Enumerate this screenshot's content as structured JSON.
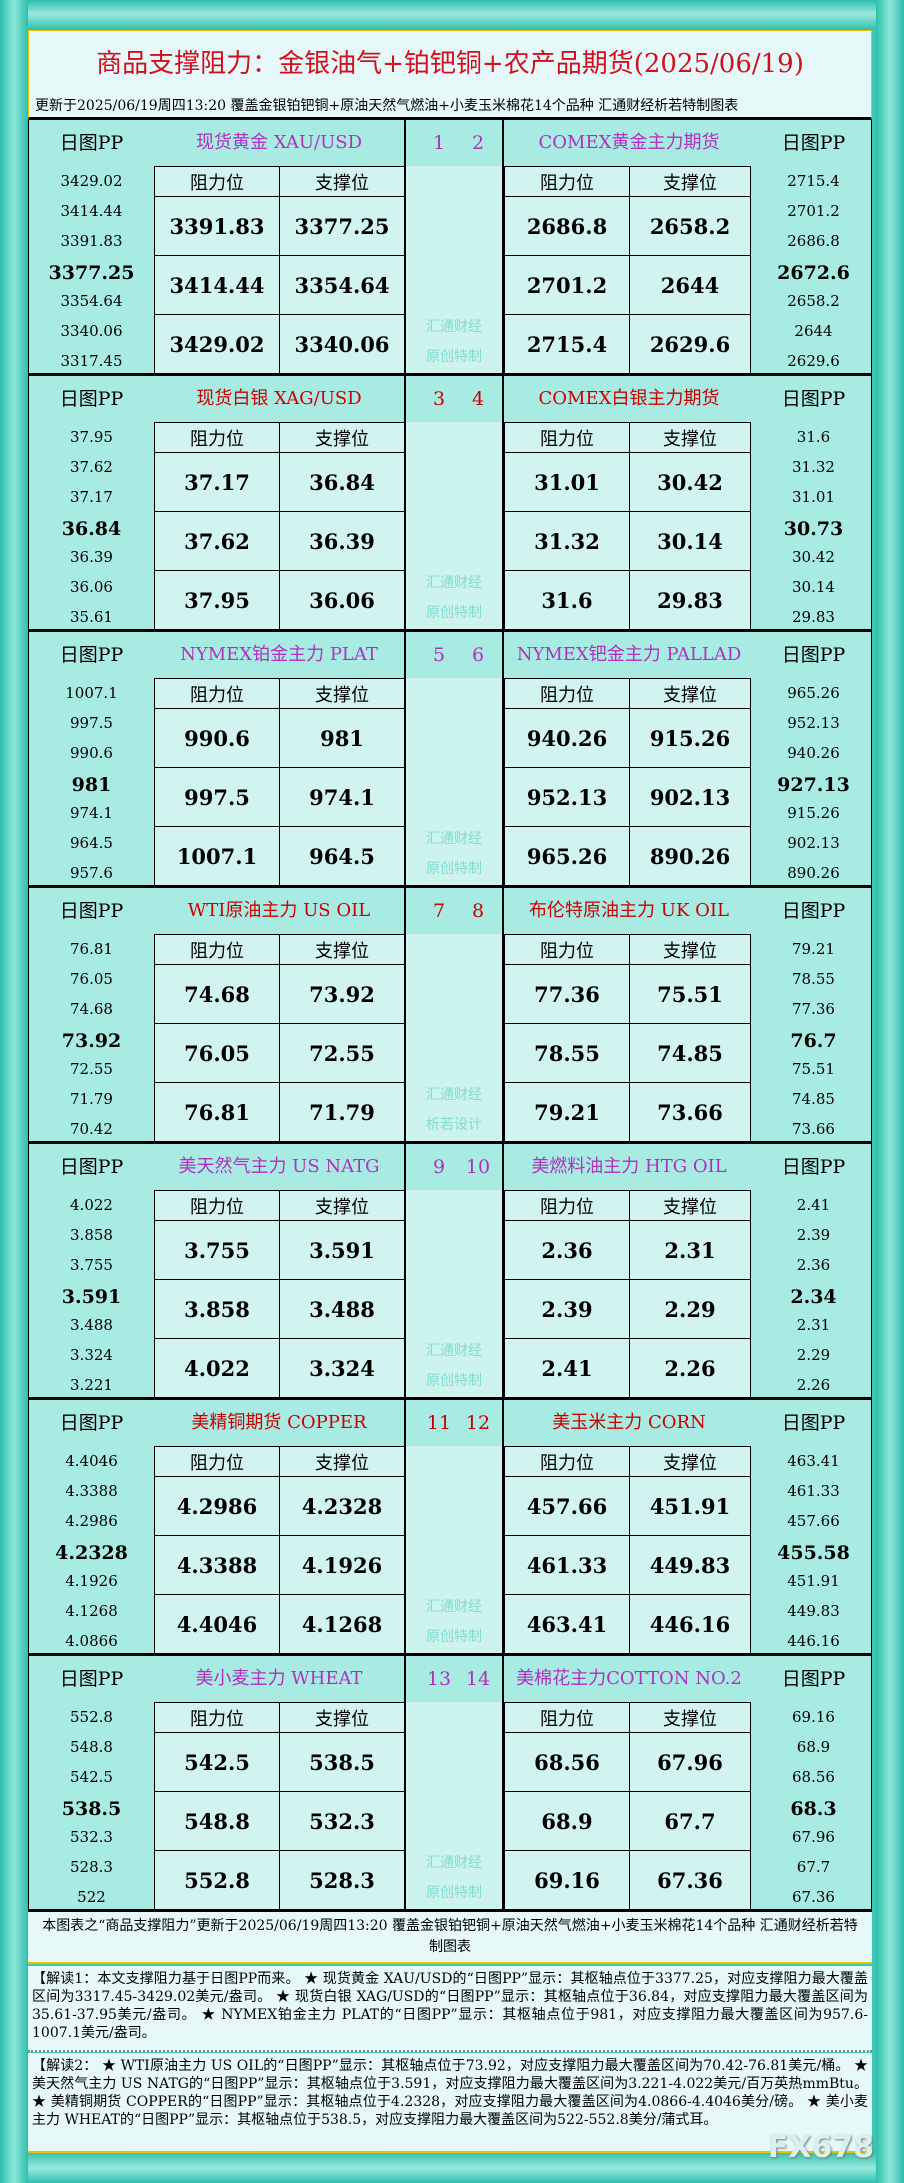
{
  "header": {
    "title": "商品支撑阻力：金银油气+铂钯铜+农产品期货(2025/06/19)",
    "subtitle": "更新于2025/06/19周四13:20 覆盖金银铂钯铜+原油天然气燃油+小麦玉米棉花14个品种 汇通财经析若特制图表"
  },
  "labels": {
    "pp": "日图PP",
    "resist": "阻力位",
    "support": "支撑位"
  },
  "colors": {
    "purple": "#b030c0",
    "red": "#cc0000"
  },
  "blocks": [
    {
      "color": "purple",
      "left": {
        "num": "1",
        "name": "现货黄金 XAU/USD",
        "pp": [
          "3429.02",
          "3414.44",
          "3391.83",
          "3377.25",
          "3354.64",
          "3340.06",
          "3317.45"
        ],
        "rows": [
          [
            "3391.83",
            "3377.25"
          ],
          [
            "3414.44",
            "3354.64"
          ],
          [
            "3429.02",
            "3340.06"
          ]
        ]
      },
      "right": {
        "num": "2",
        "name": "COMEX黄金主力期货",
        "pp": [
          "2715.4",
          "2701.2",
          "2686.8",
          "2672.6",
          "2658.2",
          "2644",
          "2629.6"
        ],
        "rows": [
          [
            "2686.8",
            "2658.2"
          ],
          [
            "2701.2",
            "2644"
          ],
          [
            "2715.4",
            "2629.6"
          ]
        ]
      },
      "wm": [
        "汇通财经",
        "原创特制"
      ]
    },
    {
      "color": "red",
      "left": {
        "num": "3",
        "name": "现货白银 XAG/USD",
        "pp": [
          "37.95",
          "37.62",
          "37.17",
          "36.84",
          "36.39",
          "36.06",
          "35.61"
        ],
        "rows": [
          [
            "37.17",
            "36.84"
          ],
          [
            "37.62",
            "36.39"
          ],
          [
            "37.95",
            "36.06"
          ]
        ]
      },
      "right": {
        "num": "4",
        "name": "COMEX白银主力期货",
        "pp": [
          "31.6",
          "31.32",
          "31.01",
          "30.73",
          "30.42",
          "30.14",
          "29.83"
        ],
        "rows": [
          [
            "31.01",
            "30.42"
          ],
          [
            "31.32",
            "30.14"
          ],
          [
            "31.6",
            "29.83"
          ]
        ]
      },
      "wm": [
        "汇通财经",
        "原创特制"
      ]
    },
    {
      "color": "purple",
      "left": {
        "num": "5",
        "name": "NYMEX铂金主力 PLAT",
        "pp": [
          "1007.1",
          "997.5",
          "990.6",
          "981",
          "974.1",
          "964.5",
          "957.6"
        ],
        "rows": [
          [
            "990.6",
            "981"
          ],
          [
            "997.5",
            "974.1"
          ],
          [
            "1007.1",
            "964.5"
          ]
        ]
      },
      "right": {
        "num": "6",
        "name": "NYMEX钯金主力 PALLAD",
        "pp": [
          "965.26",
          "952.13",
          "940.26",
          "927.13",
          "915.26",
          "902.13",
          "890.26"
        ],
        "rows": [
          [
            "940.26",
            "915.26"
          ],
          [
            "952.13",
            "902.13"
          ],
          [
            "965.26",
            "890.26"
          ]
        ]
      },
      "wm": [
        "汇通财经",
        "原创特制"
      ]
    },
    {
      "color": "red",
      "left": {
        "num": "7",
        "name": "WTI原油主力 US OIL",
        "pp": [
          "76.81",
          "76.05",
          "74.68",
          "73.92",
          "72.55",
          "71.79",
          "70.42"
        ],
        "rows": [
          [
            "74.68",
            "73.92"
          ],
          [
            "76.05",
            "72.55"
          ],
          [
            "76.81",
            "71.79"
          ]
        ]
      },
      "right": {
        "num": "8",
        "name": "布伦特原油主力 UK OIL",
        "pp": [
          "79.21",
          "78.55",
          "77.36",
          "76.7",
          "75.51",
          "74.85",
          "73.66"
        ],
        "rows": [
          [
            "77.36",
            "75.51"
          ],
          [
            "78.55",
            "74.85"
          ],
          [
            "79.21",
            "73.66"
          ]
        ]
      },
      "wm": [
        "汇通财经",
        "析若设计"
      ]
    },
    {
      "color": "purple",
      "left": {
        "num": "9",
        "name": "美天然气主力 US NATG",
        "pp": [
          "4.022",
          "3.858",
          "3.755",
          "3.591",
          "3.488",
          "3.324",
          "3.221"
        ],
        "rows": [
          [
            "3.755",
            "3.591"
          ],
          [
            "3.858",
            "3.488"
          ],
          [
            "4.022",
            "3.324"
          ]
        ]
      },
      "right": {
        "num": "10",
        "name": "美燃料油主力 HTG OIL",
        "pp": [
          "2.41",
          "2.39",
          "2.36",
          "2.34",
          "2.31",
          "2.29",
          "2.26"
        ],
        "rows": [
          [
            "2.36",
            "2.31"
          ],
          [
            "2.39",
            "2.29"
          ],
          [
            "2.41",
            "2.26"
          ]
        ]
      },
      "wm": [
        "汇通财经",
        "原创特制"
      ]
    },
    {
      "color": "red",
      "left": {
        "num": "11",
        "name": "美精铜期货 COPPER",
        "pp": [
          "4.4046",
          "4.3388",
          "4.2986",
          "4.2328",
          "4.1926",
          "4.1268",
          "4.0866"
        ],
        "rows": [
          [
            "4.2986",
            "4.2328"
          ],
          [
            "4.3388",
            "4.1926"
          ],
          [
            "4.4046",
            "4.1268"
          ]
        ]
      },
      "right": {
        "num": "12",
        "name": "美玉米主力 CORN",
        "pp": [
          "463.41",
          "461.33",
          "457.66",
          "455.58",
          "451.91",
          "449.83",
          "446.16"
        ],
        "rows": [
          [
            "457.66",
            "451.91"
          ],
          [
            "461.33",
            "449.83"
          ],
          [
            "463.41",
            "446.16"
          ]
        ]
      },
      "wm": [
        "汇通财经",
        "原创特制"
      ]
    },
    {
      "color": "purple",
      "left": {
        "num": "13",
        "name": "美小麦主力 WHEAT",
        "pp": [
          "552.8",
          "548.8",
          "542.5",
          "538.5",
          "532.3",
          "528.3",
          "522"
        ],
        "rows": [
          [
            "542.5",
            "538.5"
          ],
          [
            "548.8",
            "532.3"
          ],
          [
            "552.8",
            "528.3"
          ]
        ]
      },
      "right": {
        "num": "14",
        "name": "美棉花主力COTTON NO.2",
        "pp": [
          "69.16",
          "68.9",
          "68.56",
          "68.3",
          "67.96",
          "67.7",
          "67.36"
        ],
        "rows": [
          [
            "68.56",
            "67.96"
          ],
          [
            "68.9",
            "67.7"
          ],
          [
            "69.16",
            "67.36"
          ]
        ]
      },
      "wm": [
        "汇通财经",
        "原创特制"
      ]
    }
  ],
  "footer": {
    "note": "本图表之“商品支撑阻力”更新于2025/06/19周四13:20 覆盖金银铂钯铜+原油天然气燃油+小麦玉米棉花14个品种 汇通财经析若特制图表",
    "jiedu1": "【解读1：本文支撑阻力基于日图PP而来。 ★ 现货黄金 XAU/USD的“日图PP”显示：其枢轴点位于3377.25，对应支撑阻力最大覆盖区间为3317.45-3429.02美元/盎司。 ★ 现货白银 XAG/USD的“日图PP”显示：其枢轴点位于36.84，对应支撑阻力最大覆盖区间为35.61-37.95美元/盎司。 ★ NYMEX铂金主力 PLAT的“日图PP”显示：其枢轴点位于981，对应支撑阻力最大覆盖区间为957.6-1007.1美元/盎司。",
    "jiedu2": "【解读2： ★ WTI原油主力 US OIL的“日图PP”显示：其枢轴点位于73.92，对应支撑阻力最大覆盖区间为70.42-76.81美元/桶。 ★ 美天然气主力 US NATG的“日图PP”显示：其枢轴点位于3.591，对应支撑阻力最大覆盖区间为3.221-4.022美元/百万英热mmBtu。 ★ 美精铜期货 COPPER的“日图PP”显示：其枢轴点位于4.2328，对应支撑阻力最大覆盖区间为4.0866-4.4046美分/磅。 ★ 美小麦主力 WHEAT的“日图PP”显示：其枢轴点位于538.5，对应支撑阻力最大覆盖区间为522-552.8美分/蒲式耳。",
    "logo": "FX678"
  }
}
